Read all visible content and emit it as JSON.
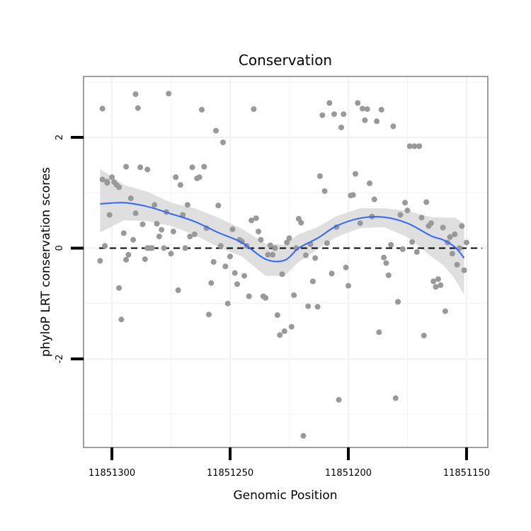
{
  "chart_data": {
    "type": "scatter",
    "title": "Conservation",
    "xlabel": "Genomic Position",
    "ylabel": "phyloP LRT conservation scores",
    "x_reversed": true,
    "xlim": [
      11851312,
      11851141
    ],
    "ylim": [
      -3.6,
      3.1
    ],
    "x_ticks": [
      11851300,
      11851250,
      11851200,
      11851150
    ],
    "x_tick_labels": [
      "11851300",
      "11851250",
      "11851200",
      "11851150"
    ],
    "y_ticks": [
      -2,
      0,
      2
    ],
    "y_tick_labels": [
      "-2",
      "0",
      "2"
    ],
    "grid": true,
    "reference_line": {
      "y": 0,
      "style": "dashed"
    },
    "colors": {
      "points": "#999999",
      "smooth": "#3366ff",
      "band": "#d9d9d9",
      "panel_border": "#808080",
      "grid": "#f2f2f2"
    },
    "smooth": {
      "x": [
        11851305,
        11851295,
        11851285,
        11851275,
        11851265,
        11851255,
        11851245,
        11851235,
        11851227,
        11851221,
        11851213,
        11851205,
        11851195,
        11851185,
        11851175,
        11851165,
        11851160,
        11851155,
        11851151
      ],
      "y": [
        0.8,
        0.82,
        0.75,
        0.62,
        0.48,
        0.28,
        0.1,
        -0.2,
        -0.22,
        0.0,
        0.18,
        0.4,
        0.54,
        0.56,
        0.45,
        0.22,
        0.15,
        0.02,
        -0.18
      ],
      "lower": [
        0.28,
        0.5,
        0.49,
        0.4,
        0.24,
        0.02,
        -0.15,
        -0.5,
        -0.5,
        -0.25,
        -0.02,
        0.2,
        0.36,
        0.38,
        0.2,
        -0.15,
        -0.3,
        -0.55,
        -0.85
      ],
      "upper": [
        1.43,
        1.14,
        1.02,
        0.82,
        0.72,
        0.55,
        0.35,
        0.08,
        0.06,
        0.25,
        0.38,
        0.58,
        0.72,
        0.72,
        0.67,
        0.56,
        0.55,
        0.55,
        0.44
      ]
    },
    "series": [
      {
        "x": [
          11851305,
          11851304,
          11851304,
          11851303,
          11851302,
          11851302,
          11851301,
          11851300,
          11851299,
          11851298,
          11851297,
          11851297,
          11851296,
          11851295,
          11851294,
          11851294,
          11851293,
          11851292,
          11851291,
          11851290,
          11851290,
          11851289,
          11851288,
          11851287,
          11851286,
          11851285,
          11851285,
          11851284,
          11851283,
          11851282,
          11851281,
          11851280,
          11851279,
          11851278,
          11851277,
          11851276,
          11851275,
          11851274,
          11851273,
          11851272,
          11851271,
          11851270,
          11851269,
          11851268,
          11851267,
          11851266,
          11851265,
          11851264,
          11851263,
          11851262,
          11851261,
          11851260,
          11851259,
          11851258,
          11851257,
          11851256,
          11851255,
          11851254,
          11851253,
          11851252,
          11851251,
          11851250,
          11851249,
          11851248,
          11851247,
          11851246,
          11851245,
          11851244,
          11851243,
          11851242,
          11851241,
          11851240,
          11851239,
          11851238,
          11851237,
          11851236,
          11851235,
          11851234,
          11851233,
          11851232,
          11851231,
          11851230,
          11851229,
          11851228,
          11851227,
          11851226,
          11851225,
          11851224,
          11851223,
          11851222,
          11851221,
          11851220,
          11851219,
          11851218,
          11851217,
          11851216,
          11851215,
          11851214,
          11851213,
          11851212,
          11851211,
          11851210,
          11851209,
          11851208,
          11851207,
          11851206,
          11851205,
          11851204,
          11851203,
          11851202,
          11851201,
          11851200,
          11851199,
          11851198,
          11851197,
          11851196,
          11851195,
          11851194,
          11851193,
          11851192,
          11851191,
          11851190,
          11851189,
          11851188,
          11851187,
          11851186,
          11851185,
          11851184,
          11851183,
          11851182,
          11851181,
          11851180,
          11851179,
          11851178,
          11851177,
          11851176,
          11851175,
          11851174,
          11851173,
          11851172,
          11851171,
          11851170,
          11851169,
          11851168,
          11851167,
          11851166,
          11851165,
          11851164,
          11851163,
          11851162,
          11851161,
          11851160,
          11851159,
          11851158,
          11851157,
          11851156,
          11851155,
          11851154,
          11851153,
          11851152,
          11851151,
          11851150
        ],
        "y": [
          -0.23,
          2.52,
          1.24,
          0.04,
          1.2,
          1.18,
          0.6,
          1.28,
          1.19,
          1.14,
          -0.72,
          1.1,
          -1.29,
          0.27,
          1.47,
          -0.21,
          -0.12,
          0.9,
          0.15,
          2.78,
          0.63,
          2.53,
          1.46,
          0.43,
          -0.2,
          1.42,
          0.0,
          0.0,
          0.0,
          0.78,
          0.44,
          0.21,
          0.33,
          0.0,
          0.65,
          2.79,
          -0.1,
          0.3,
          1.28,
          -0.76,
          1.14,
          0.6,
          0.0,
          0.78,
          0.21,
          1.46,
          0.25,
          1.26,
          1.28,
          2.5,
          1.47,
          0.36,
          -1.2,
          -0.63,
          -0.25,
          2.12,
          0.77,
          0.04,
          1.91,
          -0.33,
          -1.0,
          -0.15,
          0.34,
          -0.45,
          -0.65,
          0.15,
          0.12,
          -0.5,
          0.04,
          -0.87,
          0.5,
          2.51,
          0.54,
          0.3,
          0.15,
          -0.87,
          -0.9,
          -0.12,
          0.05,
          -0.12,
          0.0,
          -1.21,
          -1.57,
          -0.47,
          -1.5,
          0.1,
          0.18,
          -1.42,
          -0.85,
          0.0,
          0.53,
          0.46,
          -3.39,
          -0.13,
          -1.05,
          0.07,
          -0.6,
          -0.18,
          -1.06,
          1.3,
          2.4,
          1.03,
          0.09,
          2.62,
          -0.46,
          2.42,
          0.38,
          -2.74,
          2.18,
          2.42,
          -0.35,
          -0.68,
          0.95,
          0.96,
          1.34,
          2.62,
          0.45,
          2.52,
          2.31,
          2.51,
          1.17,
          0.57,
          0.88,
          2.29,
          -1.52,
          2.5,
          -0.17,
          -0.27,
          -0.49,
          0.06,
          2.2,
          -2.71,
          -0.97,
          0.6,
          -0.02,
          0.82,
          0.68,
          1.84,
          0.11,
          1.84,
          -0.07,
          1.84,
          0.55,
          -1.58,
          0.83,
          0.4,
          0.45,
          -0.6,
          -0.7,
          -0.56,
          -0.67,
          0.37,
          -1.14,
          0.1,
          0.2,
          -0.1,
          0.25,
          -0.3,
          0.0,
          0.4,
          -0.4,
          0.1
        ]
      }
    ]
  }
}
